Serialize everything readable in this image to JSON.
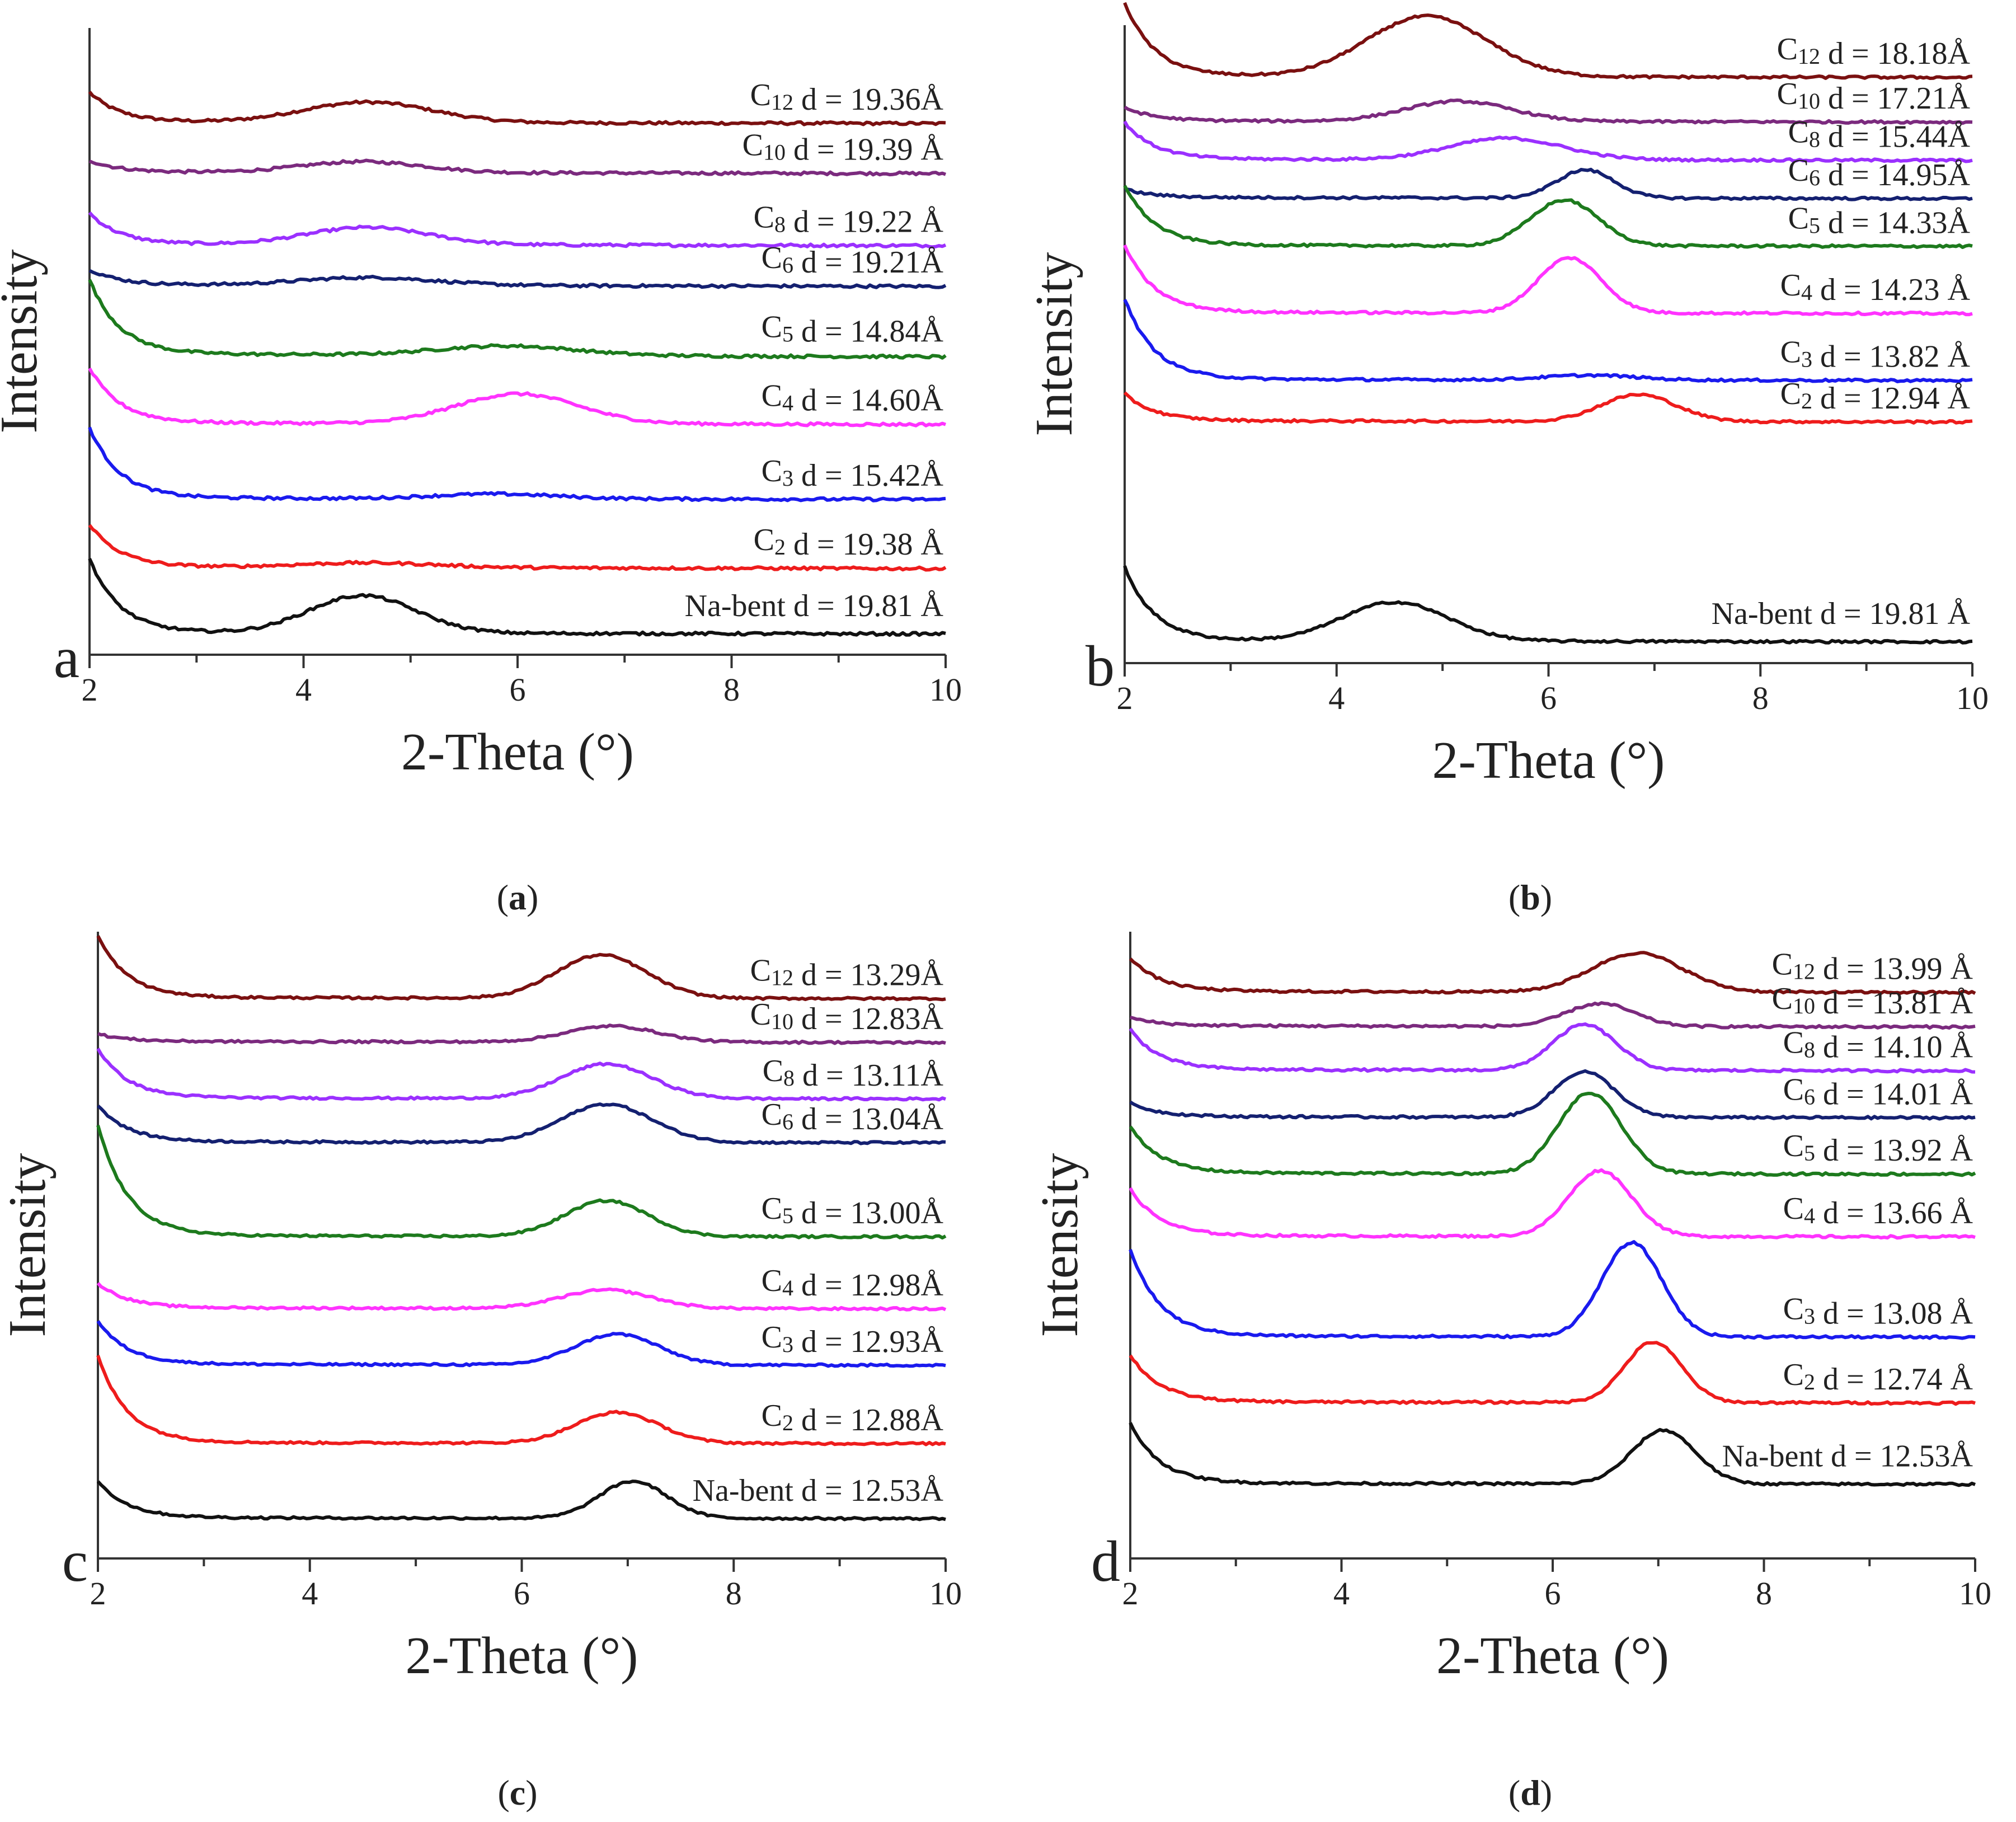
{
  "colors": {
    "C12": "#7a1010",
    "C10": "#7b2a7e",
    "C8": "#9b30ff",
    "C6": "#142070",
    "C5": "#1d7a1d",
    "C4": "#ff33ff",
    "C3": "#1a1aee",
    "C2": "#ee1c1c",
    "Na": "#111111"
  },
  "chart_data": [
    {
      "panel": "a",
      "caption_letter": "a",
      "caption": "(a)",
      "type": "line",
      "xlabel": "2-Theta (°)",
      "ylabel": "Intensity",
      "xlim": [
        2,
        10
      ],
      "xticks": [
        "2",
        "4",
        "6",
        "8",
        "10"
      ],
      "series": [
        {
          "key": "C12",
          "sub": "12",
          "dtext": "d = 19.36Å",
          "baseline": 0.13,
          "start": 0.38,
          "peak_x": 4.6,
          "peak_h": 0.26,
          "peak_w": 0.85
        },
        {
          "key": "C10",
          "sub": "10",
          "dtext": "d = 19.39 Å",
          "baseline": 0.12,
          "start": 0.15,
          "peak_x": 4.55,
          "peak_h": 0.14,
          "peak_w": 0.8
        },
        {
          "key": "C8",
          "sub": "8",
          "dtext": "d = 19.22 Å",
          "baseline": 0.12,
          "start": 0.4,
          "peak_x": 4.6,
          "peak_h": 0.22,
          "peak_w": 0.8
        },
        {
          "key": "C6",
          "sub": "6",
          "dtext": "d = 19.21Å",
          "baseline": 0.12,
          "start": 0.2,
          "peak_x": 4.6,
          "peak_h": 0.1,
          "peak_w": 0.9
        },
        {
          "key": "C5",
          "sub": "5",
          "dtext": "d = 14.84Å",
          "baseline": 0.25,
          "start": 0.95,
          "peak_x": 5.9,
          "peak_h": 0.12,
          "peak_w": 0.9
        },
        {
          "key": "C4",
          "sub": "4",
          "dtext": "d = 14.60Å",
          "baseline": 0.14,
          "start": 0.7,
          "peak_x": 6.0,
          "peak_h": 0.38,
          "peak_w": 0.8
        },
        {
          "key": "C3",
          "sub": "3",
          "dtext": "d = 15.42Å",
          "baseline": 0.12,
          "start": 0.9,
          "peak_x": 5.8,
          "peak_h": 0.06,
          "peak_w": 0.8
        },
        {
          "key": "C2",
          "sub": "2",
          "dtext": "d = 19.38 Å",
          "baseline": 0.14,
          "start": 0.55,
          "peak_x": 4.6,
          "peak_h": 0.06,
          "peak_w": 0.9
        },
        {
          "key": "Na",
          "label": "Na-bent",
          "dtext": "d = 19.81 Å",
          "baseline": 0.1,
          "start": 0.95,
          "peak_x": 4.55,
          "peak_h": 0.48,
          "peak_w": 0.7
        }
      ]
    },
    {
      "panel": "b",
      "caption_letter": "b",
      "caption": "(b)",
      "type": "line",
      "xlabel": "2-Theta (°)",
      "ylabel": "Intensity",
      "xlim": [
        2,
        10
      ],
      "xticks": [
        "2",
        "4",
        "6",
        "8",
        "10"
      ],
      "series": [
        {
          "key": "C12",
          "sub": "12",
          "dtext": "d = 18.18Å",
          "baseline": 0.12,
          "start": 1.1,
          "peak_x": 4.85,
          "peak_h": 0.9,
          "peak_w": 0.8
        },
        {
          "key": "C10",
          "sub": "10",
          "dtext": "d = 17.21Å",
          "baseline": 0.12,
          "start": 0.2,
          "peak_x": 5.15,
          "peak_h": 0.3,
          "peak_w": 0.7
        },
        {
          "key": "C8",
          "sub": "8",
          "dtext": "d = 15.44Å",
          "baseline": 0.12,
          "start": 0.55,
          "peak_x": 5.6,
          "peak_h": 0.32,
          "peak_w": 0.75
        },
        {
          "key": "C6",
          "sub": "6",
          "dtext": "d = 14.95Å",
          "baseline": 0.12,
          "start": 0.12,
          "peak_x": 6.35,
          "peak_h": 0.42,
          "peak_w": 0.38
        },
        {
          "key": "C5",
          "sub": "5",
          "dtext": "d = 14.33Å",
          "baseline": 0.1,
          "start": 0.9,
          "peak_x": 6.15,
          "peak_h": 0.68,
          "peak_w": 0.45
        },
        {
          "key": "C4",
          "sub": "4",
          "dtext": "d = 14.23 Å",
          "baseline": 0.12,
          "start": 1.0,
          "peak_x": 6.2,
          "peak_h": 0.82,
          "peak_w": 0.42
        },
        {
          "key": "C3",
          "sub": "3",
          "dtext": "d = 13.82 Å",
          "baseline": 0.13,
          "start": 1.2,
          "peak_x": 6.4,
          "peak_h": 0.07,
          "peak_w": 0.6
        },
        {
          "key": "C2",
          "sub": "2",
          "dtext": "d = 12.94 Å",
          "baseline": 0.12,
          "start": 0.4,
          "peak_x": 6.85,
          "peak_h": 0.4,
          "peak_w": 0.5
        },
        {
          "key": "Na",
          "label": "Na-bent",
          "dtext": "d = 19.81 Å",
          "baseline": 0.1,
          "start": 1.1,
          "peak_x": 4.55,
          "peak_h": 0.58,
          "peak_w": 0.7
        }
      ]
    },
    {
      "panel": "c",
      "caption_letter": "c",
      "caption": "(c)",
      "type": "line",
      "xlabel": "2-Theta (°)",
      "ylabel": "Intensity",
      "xlim": [
        2,
        10
      ],
      "xticks": [
        "2",
        "4",
        "6",
        "8",
        "10"
      ],
      "series": [
        {
          "key": "C12",
          "sub": "12",
          "dtext": "d = 13.29Å",
          "baseline": 0.12,
          "start": 1.0,
          "peak_x": 6.75,
          "peak_h": 0.7,
          "peak_w": 0.6
        },
        {
          "key": "C10",
          "sub": "10",
          "dtext": "d = 12.83Å",
          "baseline": 0.12,
          "start": 0.12,
          "peak_x": 6.85,
          "peak_h": 0.26,
          "peak_w": 0.6
        },
        {
          "key": "C8",
          "sub": "8",
          "dtext": "d = 13.11Å",
          "baseline": 0.12,
          "start": 0.8,
          "peak_x": 6.8,
          "peak_h": 0.56,
          "peak_w": 0.6
        },
        {
          "key": "C6",
          "sub": "6",
          "dtext": "d = 13.04Å",
          "baseline": 0.12,
          "start": 0.6,
          "peak_x": 6.8,
          "peak_h": 0.62,
          "peak_w": 0.6
        },
        {
          "key": "C5",
          "sub": "5",
          "dtext": "d = 13.00Å",
          "baseline": 0.12,
          "start": 1.8,
          "peak_x": 6.8,
          "peak_h": 0.58,
          "peak_w": 0.55
        },
        {
          "key": "C4",
          "sub": "4",
          "dtext": "d = 12.98Å",
          "baseline": 0.12,
          "start": 0.4,
          "peak_x": 6.8,
          "peak_h": 0.3,
          "peak_w": 0.6
        },
        {
          "key": "C3",
          "sub": "3",
          "dtext": "d = 12.93Å",
          "baseline": 0.12,
          "start": 0.7,
          "peak_x": 6.9,
          "peak_h": 0.5,
          "peak_w": 0.55
        },
        {
          "key": "C2",
          "sub": "2",
          "dtext": "d = 12.88Å",
          "baseline": 0.12,
          "start": 1.4,
          "peak_x": 6.9,
          "peak_h": 0.5,
          "peak_w": 0.55
        },
        {
          "key": "Na",
          "label": "Na-bent",
          "dtext": "d = 12.53Å",
          "baseline": 0.1,
          "start": 0.6,
          "peak_x": 7.05,
          "peak_h": 0.6,
          "peak_w": 0.45
        }
      ]
    },
    {
      "panel": "d",
      "caption_letter": "d",
      "caption": "(d)",
      "type": "line",
      "xlabel": "2-Theta (°)",
      "ylabel": "Intensity",
      "xlim": [
        2,
        10
      ],
      "xticks": [
        "2",
        "4",
        "6",
        "8",
        "10"
      ],
      "series": [
        {
          "key": "C12",
          "sub": "12",
          "dtext": "d = 13.99 Å",
          "baseline": 0.12,
          "start": 0.5,
          "peak_x": 6.8,
          "peak_h": 0.58,
          "peak_w": 0.6
        },
        {
          "key": "C10",
          "sub": "10",
          "dtext": "d = 13.81 Å",
          "baseline": 0.12,
          "start": 0.12,
          "peak_x": 6.45,
          "peak_h": 0.34,
          "peak_w": 0.45
        },
        {
          "key": "C8",
          "sub": "8",
          "dtext": "d = 14.10 Å",
          "baseline": 0.12,
          "start": 0.6,
          "peak_x": 6.3,
          "peak_h": 0.68,
          "peak_w": 0.42
        },
        {
          "key": "C6",
          "sub": "6",
          "dtext": "d = 14.01 Å",
          "baseline": 0.12,
          "start": 0.2,
          "peak_x": 6.3,
          "peak_h": 0.68,
          "peak_w": 0.4
        },
        {
          "key": "C5",
          "sub": "5",
          "dtext": "d = 13.92 Å",
          "baseline": 0.12,
          "start": 0.7,
          "peak_x": 6.35,
          "peak_h": 1.2,
          "peak_w": 0.42
        },
        {
          "key": "C4",
          "sub": "4",
          "dtext": "d = 13.66 Å",
          "baseline": 0.12,
          "start": 0.7,
          "peak_x": 6.45,
          "peak_h": 0.98,
          "peak_w": 0.42
        },
        {
          "key": "C3",
          "sub": "3",
          "dtext": "d = 13.08 Å",
          "baseline": 0.12,
          "start": 1.3,
          "peak_x": 6.75,
          "peak_h": 1.4,
          "peak_w": 0.4
        },
        {
          "key": "C2",
          "sub": "2",
          "dtext": "d = 12.74 Å",
          "baseline": 0.12,
          "start": 0.7,
          "peak_x": 6.95,
          "peak_h": 0.9,
          "peak_w": 0.38
        },
        {
          "key": "Na",
          "label": "Na-bent",
          "dtext": "d = 12.53Å",
          "baseline": 0.1,
          "start": 0.9,
          "peak_x": 7.05,
          "peak_h": 0.8,
          "peak_w": 0.42
        }
      ]
    }
  ]
}
